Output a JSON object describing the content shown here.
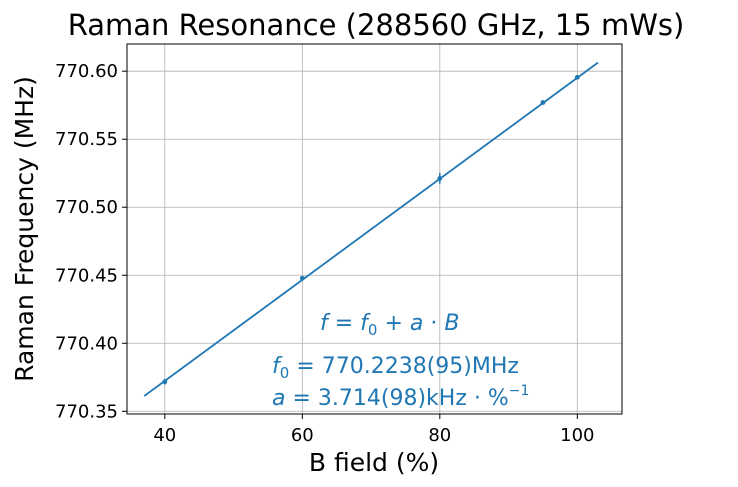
{
  "chart_data": {
    "type": "scatter",
    "title": "Raman Resonance (288560 GHz, 15 mWs)",
    "xlabel": "B field (%)",
    "ylabel": "Raman Frequency (MHz)",
    "xlim": [
      34.5,
      106.5
    ],
    "ylim": [
      770.348,
      770.62
    ],
    "xticks": [
      40,
      60,
      80,
      100
    ],
    "yticks": [
      770.35,
      770.4,
      770.45,
      770.5,
      770.55,
      770.6
    ],
    "ytick_labels": [
      "770.35",
      "770.40",
      "770.45",
      "770.50",
      "770.55",
      "770.60"
    ],
    "xtick_labels": [
      "40",
      "60",
      "80",
      "100"
    ],
    "grid": true,
    "color": "#1f77b4",
    "series": [
      {
        "type": "scatter",
        "x": [
          40,
          60,
          80,
          95,
          100
        ],
        "y": [
          770.3717,
          770.4478,
          770.5212,
          770.577,
          770.5955
        ],
        "yerr": [
          0.002,
          0.0015,
          0.004,
          0.0015,
          0.0015
        ]
      },
      {
        "type": "line",
        "x": [
          37,
          103
        ],
        "y": [
          770.3612,
          770.6063
        ]
      }
    ],
    "annotations": {
      "formula": {
        "lhs": "f",
        "eq": " = ",
        "f0": "f",
        "f0_sub": "0",
        "plus": " + ",
        "a": "a",
        "dot": " · ",
        "b": "B"
      },
      "f0_line": {
        "sym": "f",
        "sub": "0",
        "text": " = 770.2238(95)MHz"
      },
      "a_line": {
        "sym": "a",
        "text": " = 3.714(98)kHz · %",
        "sup": "−1"
      }
    }
  }
}
